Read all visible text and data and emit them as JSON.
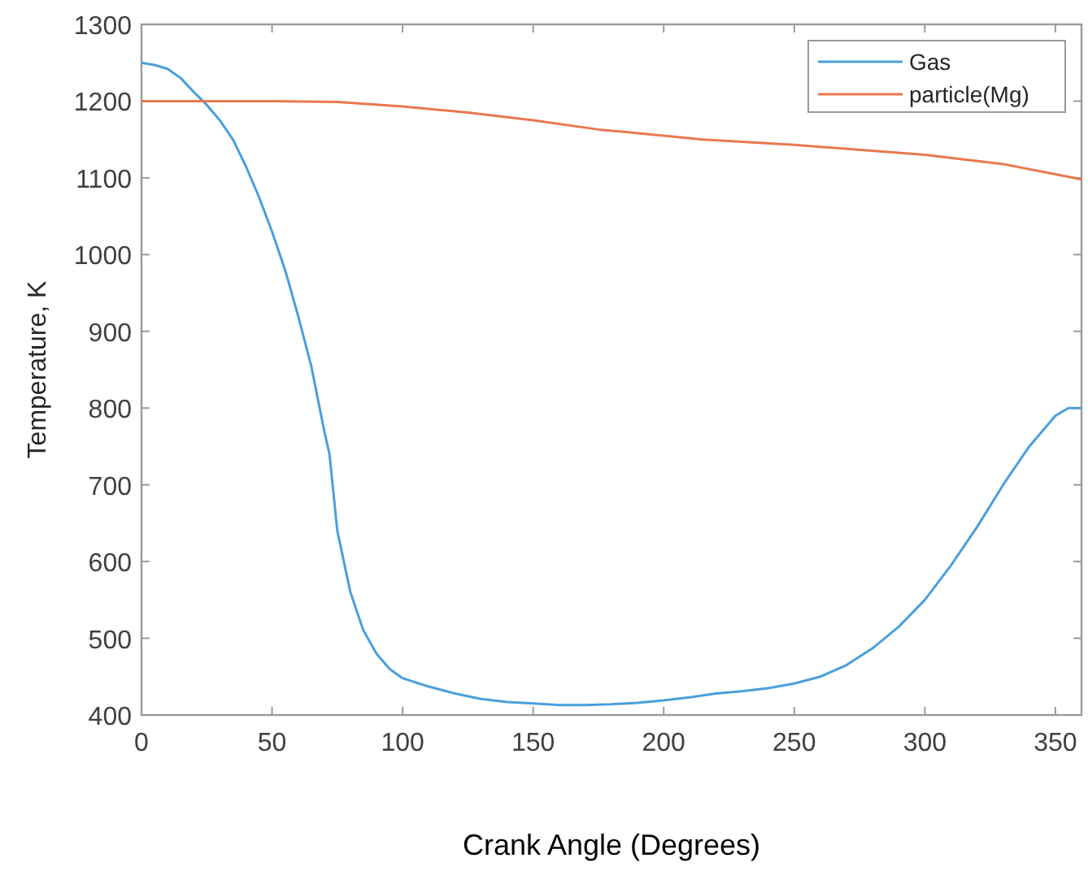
{
  "chart_data": {
    "type": "line",
    "xlabel": "Crank Angle (Degrees)",
    "ylabel": "Temperature, K",
    "xlim": [
      0,
      360
    ],
    "ylim": [
      400,
      1300
    ],
    "xticks": [
      0,
      50,
      100,
      150,
      200,
      250,
      300,
      350
    ],
    "yticks": [
      400,
      500,
      600,
      700,
      800,
      900,
      1000,
      1100,
      1200,
      1300
    ],
    "grid": false,
    "legend": "top right",
    "series": [
      {
        "name": "Gas",
        "color": "#4a9fdc",
        "x": [
          0,
          5,
          10,
          15,
          20,
          25,
          30,
          35,
          40,
          45,
          50,
          55,
          60,
          65,
          70,
          72,
          75,
          80,
          85,
          90,
          95,
          100,
          110,
          120,
          130,
          140,
          150,
          160,
          170,
          180,
          190,
          200,
          210,
          220,
          230,
          240,
          250,
          260,
          270,
          280,
          290,
          300,
          310,
          320,
          330,
          340,
          350,
          355,
          360
        ],
        "values": [
          1250,
          1247,
          1242,
          1230,
          1212,
          1195,
          1175,
          1150,
          1115,
          1075,
          1030,
          980,
          920,
          855,
          770,
          740,
          640,
          560,
          510,
          480,
          460,
          448,
          437,
          428,
          421,
          417,
          415,
          413,
          413,
          414,
          416,
          419,
          423,
          428,
          431,
          435,
          441,
          450,
          465,
          487,
          515,
          550,
          595,
          645,
          700,
          750,
          790,
          800,
          800
        ]
      },
      {
        "name": "particle(Mg)",
        "color": "#e8784f",
        "x": [
          0,
          50,
          75,
          100,
          125,
          150,
          175,
          200,
          215,
          250,
          300,
          330,
          360
        ],
        "values": [
          1200,
          1200,
          1199,
          1193,
          1185,
          1175,
          1163,
          1155,
          1150,
          1143,
          1130,
          1118,
          1098
        ]
      }
    ]
  }
}
